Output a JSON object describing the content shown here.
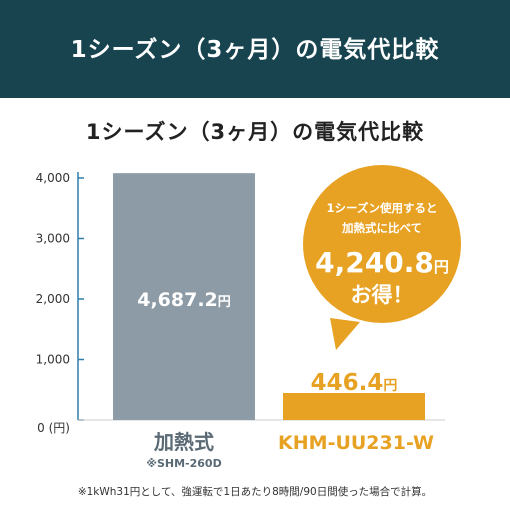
{
  "banner": {
    "title": "1シーズン（3ヶ月）の電気代比較"
  },
  "chart_data": {
    "type": "bar",
    "title": "1シーズン（3ヶ月）の電気代比較",
    "categories": [
      "加熱式",
      "KHM-UU231-W"
    ],
    "category_sublabels": [
      "※SHM-260D",
      ""
    ],
    "values": [
      4687.2,
      446.4
    ],
    "value_labels": [
      "4,687.2",
      "446.4"
    ],
    "value_unit": "円",
    "ylim": [
      0,
      4000
    ],
    "yticks": [
      0,
      1000,
      2000,
      3000,
      4000
    ],
    "ytick_labels": [
      "0 (円)",
      "1,000",
      "2,000",
      "3,000",
      "4,000"
    ],
    "grid": false,
    "annotation": {
      "line1": "1シーズン使用すると",
      "line2": "加熱式に比べて",
      "amount": "4,240.8",
      "unit": "円",
      "line3": "お得！"
    }
  },
  "colors": {
    "banner": "#17444f",
    "axis": "#2f7fa8",
    "bar_heating": "#8c9ba6",
    "bar_product": "#e8a223",
    "product_text": "#e8a223",
    "heating_text": "#5a6a75",
    "bubble": "#e8a223"
  },
  "footnote": "※1kWh31円として、強運転で1日あたり8時間/90日間使った場合で計算。"
}
